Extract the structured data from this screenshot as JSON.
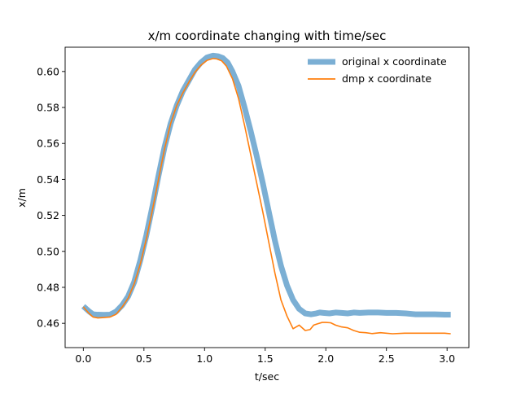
{
  "chart_data": {
    "type": "line",
    "title": "x/m coordinate changing with time/sec",
    "xlabel": "t/sec",
    "ylabel": "x/m",
    "xlim": [
      -0.15,
      3.18
    ],
    "ylim": [
      0.4465,
      0.6135
    ],
    "xticks": [
      "0.0",
      "0.5",
      "1.0",
      "1.5",
      "2.0",
      "2.5",
      "3.0"
    ],
    "yticks": [
      "0.46",
      "0.48",
      "0.50",
      "0.52",
      "0.54",
      "0.56",
      "0.58",
      "0.60"
    ],
    "legend_position": "top-right",
    "grid": false,
    "series": [
      {
        "name": "original x coordinate",
        "color": "#7bafd4",
        "style": "thick",
        "x": [
          0.0,
          0.05,
          0.08,
          0.12,
          0.17,
          0.22,
          0.27,
          0.32,
          0.37,
          0.42,
          0.47,
          0.52,
          0.57,
          0.62,
          0.67,
          0.72,
          0.77,
          0.82,
          0.87,
          0.92,
          0.97,
          1.02,
          1.07,
          1.11,
          1.15,
          1.19,
          1.23,
          1.28,
          1.33,
          1.38,
          1.43,
          1.48,
          1.53,
          1.58,
          1.63,
          1.68,
          1.73,
          1.78,
          1.83,
          1.88,
          1.92,
          1.95,
          1.98,
          2.03,
          2.08,
          2.13,
          2.18,
          2.23,
          2.28,
          2.35,
          2.43,
          2.5,
          2.58,
          2.66,
          2.74,
          2.82,
          2.9,
          2.98,
          3.03
        ],
        "y": [
          0.4695,
          0.4665,
          0.465,
          0.4648,
          0.4647,
          0.4648,
          0.4665,
          0.47,
          0.475,
          0.483,
          0.495,
          0.509,
          0.525,
          0.542,
          0.558,
          0.571,
          0.581,
          0.589,
          0.595,
          0.601,
          0.605,
          0.6078,
          0.6088,
          0.6085,
          0.6075,
          0.605,
          0.6,
          0.592,
          0.58,
          0.567,
          0.553,
          0.538,
          0.522,
          0.506,
          0.492,
          0.481,
          0.473,
          0.468,
          0.4655,
          0.465,
          0.4655,
          0.466,
          0.4658,
          0.4655,
          0.466,
          0.4658,
          0.4655,
          0.466,
          0.4658,
          0.466,
          0.466,
          0.4658,
          0.4658,
          0.4655,
          0.465,
          0.465,
          0.465,
          0.4648,
          0.4648
        ]
      },
      {
        "name": "dmp x coordinate",
        "color": "#ff7f0e",
        "style": "thin",
        "x": [
          0.0,
          0.04,
          0.08,
          0.12,
          0.17,
          0.22,
          0.27,
          0.32,
          0.37,
          0.42,
          0.47,
          0.52,
          0.57,
          0.62,
          0.67,
          0.72,
          0.77,
          0.82,
          0.87,
          0.92,
          0.97,
          1.02,
          1.07,
          1.1,
          1.14,
          1.18,
          1.23,
          1.28,
          1.33,
          1.38,
          1.43,
          1.48,
          1.53,
          1.58,
          1.63,
          1.68,
          1.73,
          1.78,
          1.83,
          1.87,
          1.9,
          1.93,
          1.97,
          2.0,
          2.04,
          2.08,
          2.13,
          2.18,
          2.23,
          2.28,
          2.33,
          2.38,
          2.45,
          2.55,
          2.65,
          2.75,
          2.85,
          2.92,
          2.98,
          3.03
        ],
        "y": [
          0.4692,
          0.466,
          0.4635,
          0.463,
          0.4632,
          0.4635,
          0.465,
          0.469,
          0.474,
          0.482,
          0.493,
          0.507,
          0.523,
          0.54,
          0.557,
          0.571,
          0.581,
          0.588,
          0.594,
          0.5995,
          0.6035,
          0.6062,
          0.6072,
          0.607,
          0.606,
          0.603,
          0.596,
          0.585,
          0.57,
          0.554,
          0.538,
          0.522,
          0.505,
          0.488,
          0.473,
          0.464,
          0.457,
          0.459,
          0.456,
          0.4565,
          0.459,
          0.4597,
          0.4605,
          0.4605,
          0.4603,
          0.459,
          0.458,
          0.4575,
          0.456,
          0.455,
          0.4548,
          0.4543,
          0.4548,
          0.4542,
          0.4545,
          0.4545,
          0.4545,
          0.4545,
          0.4545,
          0.4542
        ]
      }
    ]
  }
}
